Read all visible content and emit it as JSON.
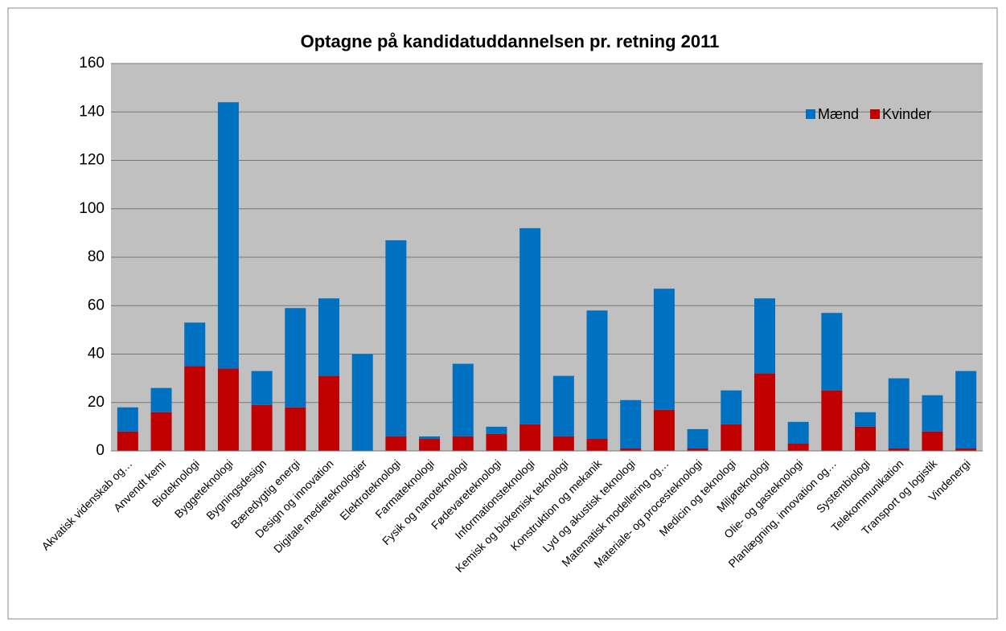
{
  "chart_data": {
    "type": "stacked_bar",
    "title": "Optagne på kandidatuddannelsen pr. retning 2011",
    "categories": [
      "Akvatisk videnskab og…",
      "Anvendt kemi",
      "Bioteknologi",
      "Byggeteknologi",
      "Bygningsdesign",
      "Bæredygtig energi",
      "Design og innovation",
      "Digitale medieteknologier",
      "Elektroteknologi",
      "Farmateknologi",
      "Fysik og nanoteknologi",
      "Fødevareteknologi",
      "Informationsteknologi",
      "Kemisk og biokemisk teknologi",
      "Konstruktion og mekanik",
      "Lyd og akustisk teknologi",
      "Matematisk modellering og…",
      "Materiale- og procesteknologi",
      "Medicin og teknologi",
      "Miljøteknologi",
      "Olie- og gasteknologi",
      "Planlægning, innovation og…",
      "Systembiologi",
      "Telekommunikation",
      "Transport og logistik",
      "Vindenergi"
    ],
    "series": [
      {
        "name": "Mænd",
        "color": "#0070c0",
        "values": [
          10,
          10,
          18,
          110,
          14,
          41,
          32,
          40,
          81,
          1,
          30,
          3,
          81,
          25,
          53,
          20,
          50,
          8,
          14,
          31,
          9,
          32,
          6,
          29,
          15,
          32
        ]
      },
      {
        "name": "Kvinder",
        "color": "#c00000",
        "values": [
          8,
          16,
          35,
          34,
          19,
          18,
          31,
          0,
          6,
          5,
          6,
          7,
          11,
          6,
          5,
          1,
          17,
          1,
          11,
          32,
          3,
          25,
          10,
          1,
          8,
          1
        ]
      }
    ],
    "ylim": [
      0,
      160
    ],
    "yticks": [
      0,
      20,
      40,
      60,
      80,
      100,
      120,
      140,
      160
    ],
    "grid": true,
    "legend": "top-right"
  }
}
